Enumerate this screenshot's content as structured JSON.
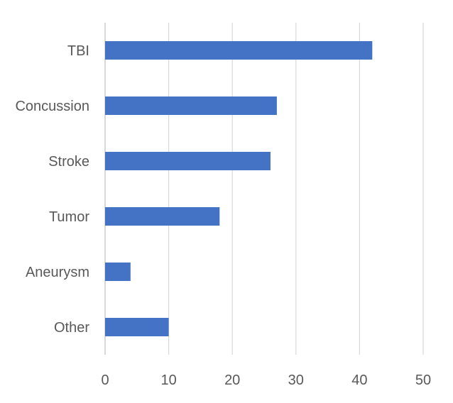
{
  "chart_data": {
    "type": "bar",
    "orientation": "horizontal",
    "categories": [
      "TBI",
      "Concussion",
      "Stroke",
      "Tumor",
      "Aneurysm",
      "Other"
    ],
    "values": [
      42,
      27,
      26,
      18,
      4,
      10
    ],
    "xlim": [
      0,
      50
    ],
    "x_ticks": [
      0,
      10,
      20,
      30,
      40,
      50
    ],
    "grid": "vertical",
    "legend": "none",
    "bar_color": "#4472c4"
  }
}
